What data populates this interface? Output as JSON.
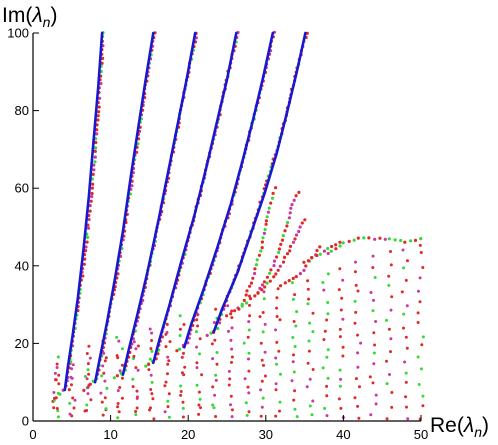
{
  "chart_data": {
    "type": "scatter",
    "title": "",
    "xlabel_prefix": "Re(",
    "xlabel_var": "λ",
    "xlabel_sub": "n",
    "xlabel_suffix": ")",
    "ylabel_prefix": "Im(",
    "ylabel_var": "λ",
    "ylabel_sub": "n",
    "ylabel_suffix": ")",
    "xlim": [
      0,
      50
    ],
    "ylim": [
      0,
      100
    ],
    "xticks": [
      0,
      10,
      20,
      30,
      40,
      50
    ],
    "yticks": [
      0,
      20,
      40,
      60,
      80,
      100
    ],
    "grid": false,
    "legend": "none",
    "colors": {
      "curve": "#1818d0",
      "dot_red": "#e02a2a",
      "dot_green": "#38d838",
      "dot_magenta": "#c83aa0"
    },
    "series": [
      {
        "kind": "curve",
        "points": [
          [
            4.1,
            8
          ],
          [
            4.5,
            14
          ],
          [
            5.1,
            22
          ],
          [
            5.8,
            32
          ],
          [
            6.5,
            44
          ],
          [
            7.2,
            58
          ],
          [
            7.8,
            72
          ],
          [
            8.4,
            86
          ],
          [
            8.9,
            100
          ]
        ]
      },
      {
        "kind": "curve",
        "points": [
          [
            8.0,
            10
          ],
          [
            8.6,
            16
          ],
          [
            9.5,
            25
          ],
          [
            10.5,
            36
          ],
          [
            11.6,
            49
          ],
          [
            12.6,
            63
          ],
          [
            13.6,
            76
          ],
          [
            14.6,
            89
          ],
          [
            15.5,
            100
          ]
        ]
      },
      {
        "kind": "curve",
        "points": [
          [
            11.6,
            12
          ],
          [
            12.3,
            18
          ],
          [
            13.4,
            27
          ],
          [
            14.7,
            38
          ],
          [
            16.1,
            51
          ],
          [
            17.4,
            64
          ],
          [
            18.6,
            76
          ],
          [
            19.8,
            88
          ],
          [
            20.9,
            100
          ]
        ]
      },
      {
        "kind": "curve",
        "points": [
          [
            15.5,
            15
          ],
          [
            16.3,
            21
          ],
          [
            17.6,
            30
          ],
          [
            19.1,
            41
          ],
          [
            20.8,
            53
          ],
          [
            22.3,
            65
          ],
          [
            23.7,
            77
          ],
          [
            25.0,
            88
          ],
          [
            26.2,
            100
          ]
        ]
      },
      {
        "kind": "curve",
        "points": [
          [
            19.5,
            19
          ],
          [
            20.4,
            25
          ],
          [
            22.0,
            34
          ],
          [
            23.8,
            45
          ],
          [
            25.5,
            56
          ],
          [
            27.0,
            67
          ],
          [
            28.4,
            78
          ],
          [
            29.7,
            89
          ],
          [
            30.9,
            100
          ]
        ]
      },
      {
        "kind": "curve",
        "points": [
          [
            23.3,
            23
          ],
          [
            24.4,
            29
          ],
          [
            26.3,
            38
          ],
          [
            28.2,
            49
          ],
          [
            29.9,
            59
          ],
          [
            31.4,
            69
          ],
          [
            32.8,
            80
          ],
          [
            34.0,
            90
          ],
          [
            35.1,
            100
          ]
        ]
      },
      {
        "kind": "dot-branch",
        "points": [
          [
            2.5,
            5
          ],
          [
            4.3,
            9
          ],
          [
            4.7,
            15
          ],
          [
            5.4,
            24
          ],
          [
            6.1,
            34
          ],
          [
            6.9,
            46
          ],
          [
            7.6,
            60
          ],
          [
            8.2,
            74
          ],
          [
            8.7,
            88
          ],
          [
            9.1,
            100
          ]
        ]
      },
      {
        "kind": "dot-branch",
        "points": [
          [
            6.5,
            8
          ],
          [
            8.2,
            11
          ],
          [
            8.9,
            18
          ],
          [
            9.8,
            27
          ],
          [
            10.9,
            38
          ],
          [
            11.9,
            51
          ],
          [
            12.9,
            64
          ],
          [
            13.9,
            78
          ],
          [
            14.9,
            91
          ],
          [
            15.7,
            100
          ]
        ]
      },
      {
        "kind": "dot-branch",
        "points": [
          [
            10.5,
            11
          ],
          [
            11.9,
            13
          ],
          [
            12.7,
            20
          ],
          [
            13.8,
            29
          ],
          [
            15.0,
            40
          ],
          [
            16.4,
            53
          ],
          [
            17.7,
            66
          ],
          [
            18.9,
            78
          ],
          [
            20.0,
            90
          ],
          [
            21.1,
            100
          ]
        ]
      },
      {
        "kind": "dot-branch",
        "points": [
          [
            14.5,
            14
          ],
          [
            15.9,
            16
          ],
          [
            16.7,
            23
          ],
          [
            18.0,
            32
          ],
          [
            19.5,
            43
          ],
          [
            21.1,
            55
          ],
          [
            22.6,
            67
          ],
          [
            23.9,
            78
          ],
          [
            25.2,
            90
          ],
          [
            26.4,
            100
          ]
        ]
      },
      {
        "kind": "dot-branch",
        "points": [
          [
            18.5,
            18
          ],
          [
            19.9,
            20
          ],
          [
            20.9,
            27
          ],
          [
            22.4,
            36
          ],
          [
            24.2,
            47
          ],
          [
            25.9,
            58
          ],
          [
            27.3,
            69
          ],
          [
            28.7,
            80
          ],
          [
            30.0,
            91
          ],
          [
            31.1,
            100
          ]
        ]
      },
      {
        "kind": "dot-branch",
        "points": [
          [
            22.5,
            22
          ],
          [
            23.8,
            24
          ],
          [
            24.9,
            31
          ],
          [
            26.8,
            41
          ],
          [
            28.5,
            51
          ],
          [
            30.2,
            62
          ],
          [
            31.7,
            72
          ],
          [
            33.0,
            82
          ],
          [
            34.2,
            92
          ],
          [
            35.3,
            100
          ]
        ]
      },
      {
        "kind": "dot-branch",
        "points": [
          [
            25.0,
            27
          ],
          [
            27.0,
            30
          ],
          [
            28.5,
            38
          ],
          [
            29.6,
            46
          ],
          [
            30.5,
            55
          ],
          [
            31.2,
            60
          ]
        ]
      },
      {
        "kind": "dot-branch",
        "points": [
          [
            26.5,
            29
          ],
          [
            29.0,
            33
          ],
          [
            31.0,
            40
          ],
          [
            32.5,
            49
          ],
          [
            33.6,
            57
          ],
          [
            34.2,
            59
          ]
        ]
      },
      {
        "kind": "dot-branch",
        "points": [
          [
            29.0,
            33
          ],
          [
            31.0,
            37
          ],
          [
            32.5,
            42
          ],
          [
            34.0,
            48
          ],
          [
            35.0,
            52
          ]
        ]
      },
      {
        "kind": "dot-branch",
        "points": [
          [
            32.0,
            35
          ],
          [
            34.5,
            38
          ],
          [
            36.0,
            42
          ],
          [
            37.0,
            45
          ]
        ]
      },
      {
        "kind": "dot-branch",
        "points": [
          [
            35.0,
            41
          ],
          [
            37.0,
            43
          ],
          [
            38.5,
            45
          ],
          [
            39.5,
            46
          ]
        ]
      },
      {
        "kind": "dot-branch",
        "points": [
          [
            38.0,
            43
          ],
          [
            40.0,
            46
          ],
          [
            42.0,
            47
          ],
          [
            44.0,
            47
          ],
          [
            46.0,
            47
          ],
          [
            48.0,
            46
          ],
          [
            50.0,
            47
          ]
        ]
      }
    ]
  }
}
